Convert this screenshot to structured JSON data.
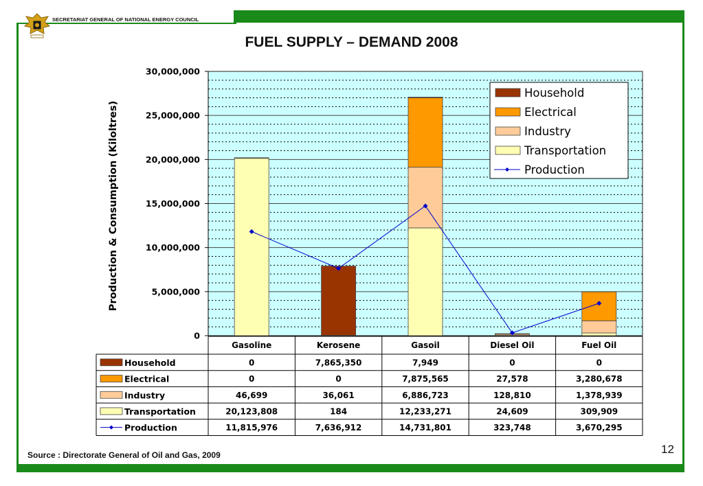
{
  "header": {
    "org_name": "SECRETARIAT GENERAL OF NATIONAL ENERGY COUNCIL"
  },
  "title": "FUEL SUPPLY – DEMAND 2008",
  "page_number": "12",
  "source": "Source : Directorate General of Oil and Gas, 2009",
  "colors": {
    "household": "#993300",
    "electrical": "#ff9900",
    "industry": "#ffcc99",
    "transportation": "#ffffb3",
    "production": "#0000cc",
    "plot_bg": "#ccffff",
    "frame": "#1a8a1a"
  },
  "chart_data": {
    "type": "bar",
    "stacked": true,
    "title": "FUEL SUPPLY – DEMAND 2008",
    "ylabel": "Production & Consumption (Kiloltres)",
    "ylim": [
      0,
      30000000
    ],
    "yticks": [
      0,
      5000000,
      10000000,
      15000000,
      20000000,
      25000000,
      30000000
    ],
    "ytick_labels": [
      "0",
      "5,000,000",
      "10,000,000",
      "15,000,000",
      "20,000,000",
      "25,000,000",
      "30,000,000"
    ],
    "grid": true,
    "legend_position": "top-right",
    "categories": [
      "Gasoline",
      "Kerosene",
      "Gasoil",
      "Diesel Oil",
      "Fuel Oil"
    ],
    "series": [
      {
        "name": "Household",
        "kind": "bar",
        "values": [
          0,
          7865350,
          7949,
          0,
          0
        ],
        "labels": [
          "0",
          "7,865,350",
          "7,949",
          "0",
          "0"
        ]
      },
      {
        "name": "Electrical",
        "kind": "bar",
        "values": [
          0,
          0,
          7875565,
          27578,
          3280678
        ],
        "labels": [
          "0",
          "0",
          "7,875,565",
          "27,578",
          "3,280,678"
        ]
      },
      {
        "name": "Industry",
        "kind": "bar",
        "values": [
          46699,
          36061,
          6886723,
          128810,
          1378939
        ],
        "labels": [
          "46,699",
          "36,061",
          "6,886,723",
          "128,810",
          "1,378,939"
        ]
      },
      {
        "name": "Transportation",
        "kind": "bar",
        "values": [
          20123808,
          184,
          12233271,
          24609,
          309909
        ],
        "labels": [
          "20,123,808",
          "184",
          "12,233,271",
          "24,609",
          "309,909"
        ]
      },
      {
        "name": "Production",
        "kind": "line",
        "values": [
          11815976,
          7636912,
          14731801,
          323748,
          3670295
        ],
        "labels": [
          "11,815,976",
          "7,636,912",
          "14,731,801",
          "323,748",
          "3,670,295"
        ]
      }
    ]
  }
}
